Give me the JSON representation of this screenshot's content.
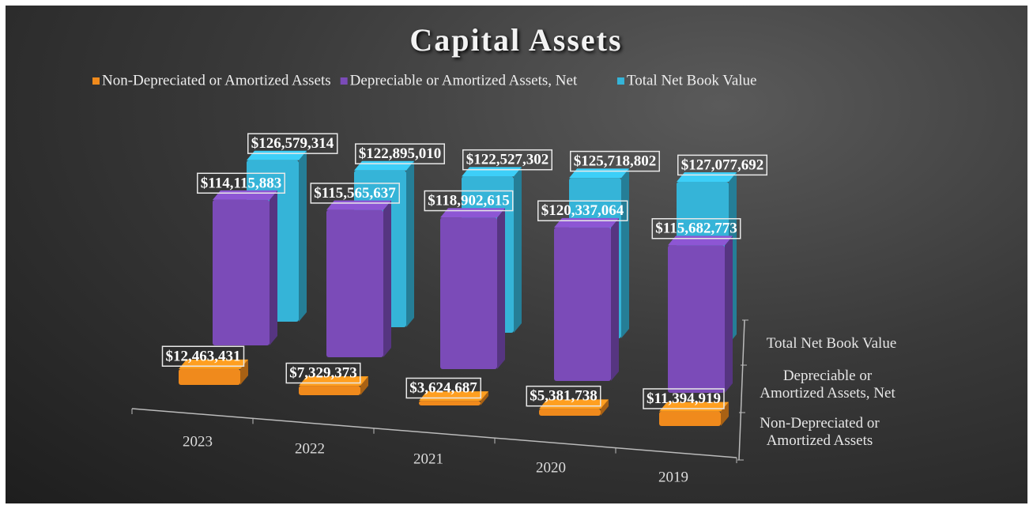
{
  "chart_data": {
    "type": "bar3d",
    "title": "Capital Assets",
    "categories": [
      "2023",
      "2022",
      "2021",
      "2020",
      "2019"
    ],
    "series": [
      {
        "name": "Non-Depreciated or Amortized Assets",
        "color": "#f08a1c",
        "values": [
          12463431,
          7329373,
          3624687,
          5381738,
          11394919
        ],
        "value_labels": [
          "$12,463,431",
          "$7,329,373",
          "$3,624,687",
          "$5,381,738",
          "$11,394,919"
        ]
      },
      {
        "name": "Depreciable or Amortized Assets, Net",
        "color": "#7b4bb8",
        "values": [
          114115883,
          115565637,
          118902615,
          120337064,
          115682773
        ],
        "value_labels": [
          "$114,115,883",
          "$115,565,637",
          "$118,902,615",
          "$120,337,064",
          "$115,682,773"
        ]
      },
      {
        "name": "Total Net Book Value",
        "color": "#35b4d8",
        "values": [
          126579314,
          122895010,
          122527302,
          125718802,
          127077692
        ],
        "value_labels": [
          "$126,579,314",
          "$122,895,010",
          "$122,527,302",
          "$125,718,802",
          "$127,077,692"
        ]
      }
    ]
  }
}
